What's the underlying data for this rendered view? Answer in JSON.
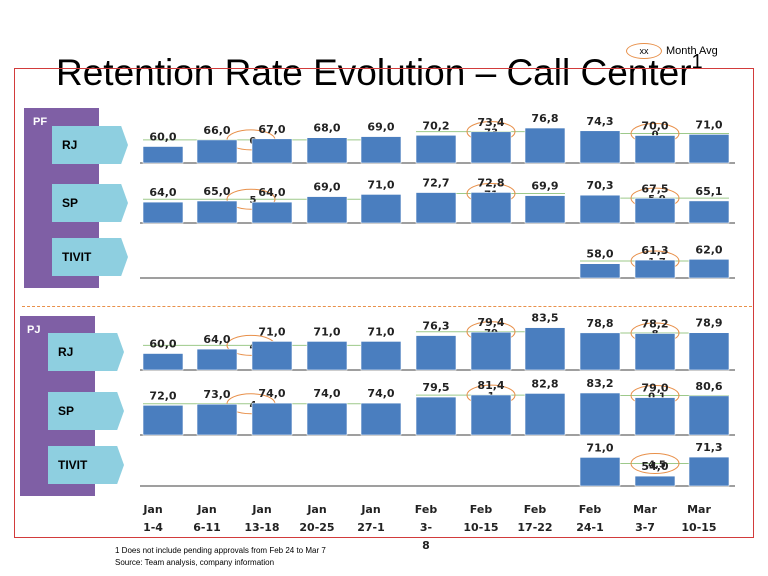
{
  "title": "Retention Rate Evolution – Call Center",
  "title_sup": "1",
  "legend": {
    "oval_text": "xx",
    "label": "Month Avg"
  },
  "footnote": "1 Does not include pending approvals from Feb 24 to Mar 7",
  "source": "Source: Team analysis, company information",
  "groups": [
    {
      "label": "PF",
      "segments": [
        "RJ",
        "SP",
        "TIVIT"
      ]
    },
    {
      "label": "PJ",
      "segments": [
        "RJ",
        "SP",
        "TIVIT"
      ]
    }
  ],
  "colors": {
    "bar": "#4a7ebf",
    "avg_oval": "#e8904a",
    "avg_line": "#9dc98a",
    "group": "#7f5fa5",
    "segment": "#8ecfe0",
    "frame": "#d23b3b"
  },
  "chart_data": {
    "type": "bar",
    "categories": [
      [
        "Jan",
        "1-4"
      ],
      [
        "Jan",
        "6-11"
      ],
      [
        "Jan",
        "13-18"
      ],
      [
        "Jan",
        "20-25"
      ],
      [
        "Jan",
        "27-1"
      ],
      [
        "Feb",
        "3-",
        "8"
      ],
      [
        "Feb",
        "10-15"
      ],
      [
        "Feb",
        "17-22"
      ],
      [
        "Feb",
        "24-1"
      ],
      [
        "Mar",
        "3-7"
      ],
      [
        "Mar",
        "10-15"
      ]
    ],
    "series": [
      {
        "group": "PF",
        "segment": "RJ",
        "labels": [
          "60,0",
          "66,0",
          "67,0",
          "68,0",
          "69,0",
          "70,2",
          "73,4",
          "76,8",
          "74,3",
          "70,0",
          "71,0"
        ],
        "values": [
          60.0,
          66.0,
          67.0,
          68.0,
          69.0,
          70.2,
          73.4,
          76.8,
          74.3,
          70.0,
          71.0
        ],
        "month_avg_labels": [
          "0",
          "73,",
          "0,"
        ]
      },
      {
        "group": "PF",
        "segment": "SP",
        "labels": [
          "64,0",
          "65,0",
          "64,0",
          "69,0",
          "71,0",
          "72,7",
          "72,8",
          "69,9",
          "70,3",
          "67,5",
          "65,1"
        ],
        "values": [
          64.0,
          65.0,
          64.0,
          69.0,
          71.0,
          72.7,
          72.8,
          69.9,
          70.3,
          67.5,
          65.1
        ],
        "month_avg_labels": [
          "5",
          "71,",
          "5,9"
        ]
      },
      {
        "group": "PF",
        "segment": "TIVIT",
        "labels": [
          null,
          null,
          null,
          null,
          null,
          null,
          null,
          null,
          "58,0",
          "61,3",
          "62,0"
        ],
        "values": [
          null,
          null,
          null,
          null,
          null,
          null,
          null,
          null,
          58.0,
          61.3,
          62.0
        ],
        "month_avg_labels": [
          null,
          null,
          "1,7"
        ]
      },
      {
        "group": "PJ",
        "segment": "RJ",
        "labels": [
          "60,0",
          "64,0",
          "71,0",
          "71,0",
          "71,0",
          "76,3",
          "79,4",
          "83,5",
          "78,8",
          "78,2",
          "78,9"
        ],
        "values": [
          60.0,
          64.0,
          71.0,
          71.0,
          71.0,
          76.3,
          79.4,
          83.5,
          78.8,
          78.2,
          78.9
        ],
        "month_avg_labels": [
          "4",
          "79,",
          "8,"
        ]
      },
      {
        "group": "PJ",
        "segment": "SP",
        "labels": [
          "72,0",
          "73,0",
          "74,0",
          "74,0",
          "74,0",
          "79,5",
          "81,4",
          "82,8",
          "83,2",
          "79,0",
          "80,6"
        ],
        "values": [
          72.0,
          73.0,
          74.0,
          74.0,
          74.0,
          79.5,
          81.4,
          82.8,
          83.2,
          79.0,
          80.6
        ],
        "month_avg_labels": [
          "4",
          "1,",
          "0,1"
        ]
      },
      {
        "group": "PJ",
        "segment": "TIVIT",
        "labels": [
          null,
          null,
          null,
          null,
          null,
          null,
          null,
          null,
          "71,0",
          "54,0",
          "71,3"
        ],
        "values": [
          null,
          null,
          null,
          null,
          null,
          null,
          null,
          null,
          71.0,
          54.0,
          71.3
        ],
        "month_avg_labels": [
          null,
          null,
          "4,5"
        ]
      }
    ]
  }
}
